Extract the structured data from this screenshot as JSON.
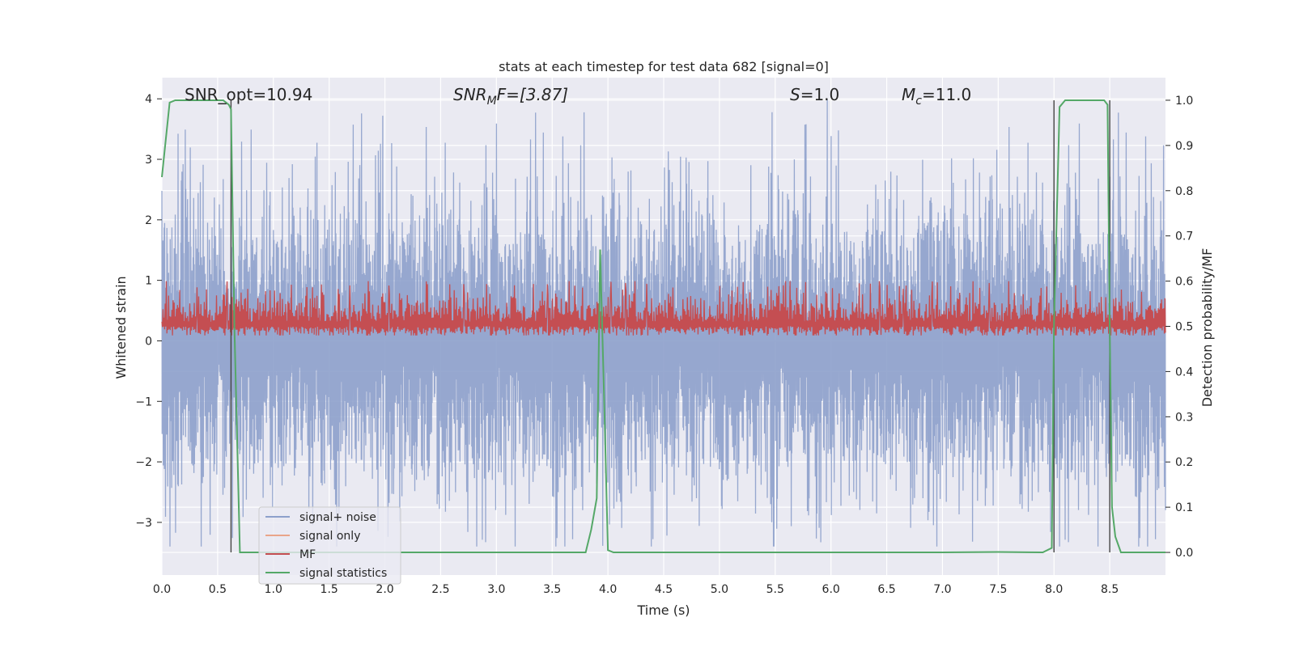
{
  "chart_data": {
    "type": "line",
    "title": "stats at each timestep for test data 682 [signal=0]",
    "xlabel": "Time (s)",
    "ylabel_left": "Whitened strain",
    "ylabel_right": "Detection probability/MF",
    "xlim": [
      0,
      9.0
    ],
    "ylim_left": [
      -3.87,
      4.35
    ],
    "ylim_right": [
      -0.05,
      1.05
    ],
    "grid": true,
    "legend_position": "lower-left",
    "x_ticks": [
      "0.0",
      "0.5",
      "1.0",
      "1.5",
      "2.0",
      "2.5",
      "3.0",
      "3.5",
      "4.0",
      "4.5",
      "5.0",
      "5.5",
      "6.0",
      "6.5",
      "7.0",
      "7.5",
      "8.0",
      "8.5"
    ],
    "y_ticks_left": [
      "4",
      "3",
      "2",
      "1",
      "0",
      "−1",
      "−2",
      "−3"
    ],
    "y_ticks_right": [
      "1.0",
      "0.9",
      "0.8",
      "0.7",
      "0.6",
      "0.5",
      "0.4",
      "0.3",
      "0.2",
      "0.1",
      "0.0"
    ],
    "annotations": {
      "snr_opt": "SNR_opt=10.94",
      "snr_mf_main": "SNR",
      "snr_mf_sub": "M",
      "snr_mf_rest": "F=[3.87]",
      "s_main": "S",
      "s_rest": "=1.0",
      "mc_main": "M",
      "mc_sub": "c",
      "mc_rest": "=11.0"
    },
    "series": [
      {
        "name": "signal+ noise",
        "color": "#8da0cb",
        "kind": "noise",
        "center": -0.05,
        "spread": 1.3,
        "peak_max": 4.0
      },
      {
        "name": "signal only",
        "color": "#e9a589",
        "kind": "flat",
        "values": []
      },
      {
        "name": "MF",
        "color": "#c44e52",
        "kind": "band",
        "center_right": 0.5,
        "low_right": 0.48,
        "high_right": 0.6
      },
      {
        "name": "signal statistics",
        "color": "#55a868",
        "x": [
          0.0,
          0.07,
          0.12,
          0.2,
          0.3,
          0.4,
          0.5,
          0.55,
          0.6,
          0.62,
          0.65,
          0.7,
          1.0,
          2.0,
          3.0,
          3.5,
          3.8,
          3.85,
          3.9,
          3.93,
          3.97,
          4.0,
          4.05,
          5.0,
          6.0,
          7.0,
          7.5,
          7.9,
          7.98,
          8.0,
          8.05,
          8.1,
          8.2,
          8.3,
          8.4,
          8.45,
          8.48,
          8.5,
          8.52,
          8.55,
          8.6,
          8.7,
          8.8,
          8.9,
          9.0
        ],
        "y": [
          0.83,
          0.995,
          1.0,
          1.0,
          1.0,
          1.0,
          1.0,
          1.0,
          0.99,
          0.98,
          0.5,
          0.0,
          0.0,
          0.0,
          0.0,
          0.0,
          0.0,
          0.05,
          0.12,
          0.67,
          0.3,
          0.005,
          0.0,
          0.0,
          0.0,
          0.0,
          0.001,
          0.0,
          0.01,
          0.5,
          0.985,
          1.0,
          1.0,
          1.0,
          1.0,
          1.0,
          0.99,
          0.5,
          0.1,
          0.035,
          0.0,
          0.0,
          0.0,
          0.0,
          0.0
        ]
      }
    ],
    "vertical_markers_x": [
      0.62,
      8.0,
      8.5
    ]
  }
}
